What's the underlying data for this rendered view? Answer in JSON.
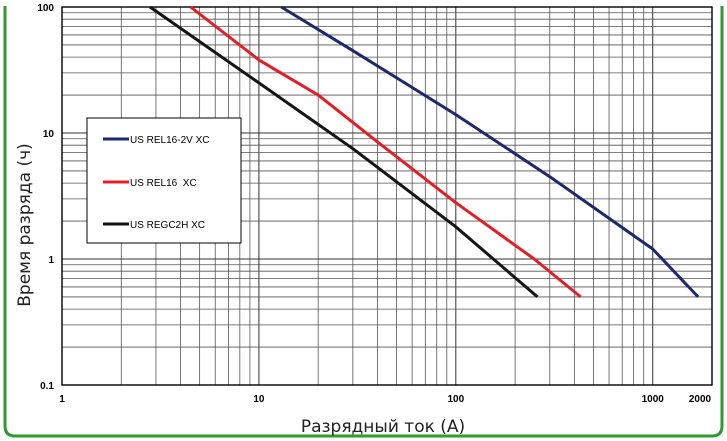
{
  "chart_data": {
    "type": "line",
    "xlabel": "Разрядный ток (А)",
    "ylabel": "Время разряда (ч)",
    "x_scale": "log",
    "y_scale": "log",
    "xlim": [
      1,
      2000
    ],
    "ylim": [
      0.1,
      100
    ],
    "x_tick_labels": [
      "1",
      "10",
      "100",
      "1000",
      "2000"
    ],
    "y_tick_labels": [
      "100",
      "10",
      "1",
      "0.1"
    ],
    "grid": true,
    "legend_position": "left",
    "series": [
      {
        "name": "US REL16-2V XC",
        "color": "#1c2a6b",
        "points": [
          [
            13,
            100
          ],
          [
            30,
            45
          ],
          [
            100,
            14
          ],
          [
            300,
            4.5
          ],
          [
            1000,
            1.2
          ],
          [
            1700,
            0.5
          ]
        ]
      },
      {
        "name": "US REL16  XC",
        "color": "#e41e26",
        "points": [
          [
            4.5,
            100
          ],
          [
            10,
            38
          ],
          [
            20,
            20
          ],
          [
            40,
            8.5
          ],
          [
            100,
            2.8
          ],
          [
            250,
            1.0
          ],
          [
            430,
            0.5
          ]
        ]
      },
      {
        "name": "US REGC2H XC",
        "color": "#151515",
        "points": [
          [
            2.8,
            100
          ],
          [
            10,
            25
          ],
          [
            30,
            7.5
          ],
          [
            100,
            1.8
          ],
          [
            260,
            0.5
          ]
        ]
      }
    ]
  }
}
